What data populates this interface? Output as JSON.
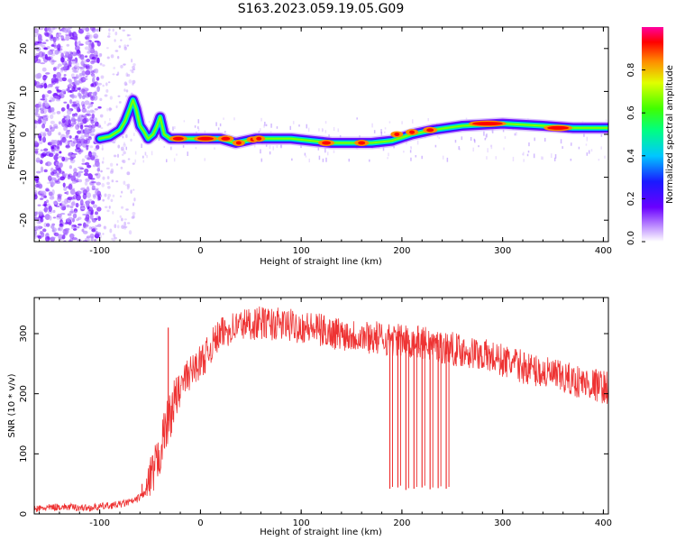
{
  "figure": {
    "title": "S163.2023.059.19.05.G09"
  },
  "colors": {
    "snr_line": "#ee3333",
    "axis": "#000000",
    "background": "#ffffff"
  },
  "chart_data": [
    {
      "type": "heatmap",
      "xlabel": "Height of straight line (km)",
      "ylabel": "Frequency (Hz)",
      "xlim": [
        -165,
        405
      ],
      "ylim": [
        -25,
        25
      ],
      "xticks": [
        -100,
        0,
        100,
        200,
        300,
        400
      ],
      "yticks": [
        -20,
        -10,
        0,
        10,
        20
      ],
      "xtick_labels": [
        "-100",
        "0",
        "100",
        "200",
        "300",
        "400"
      ],
      "ytick_labels": [
        "-20",
        "-10",
        "0",
        "10",
        "20"
      ],
      "grid": false,
      "colorbar": {
        "label": "Normalized spectral amplitude",
        "range": [
          0,
          1
        ],
        "ticks": [
          0.0,
          0.2,
          0.4,
          0.6,
          0.8
        ],
        "tick_labels": [
          "0.0",
          "0.2",
          "0.4",
          "0.6",
          "0.8"
        ],
        "colormap": "rainbow"
      },
      "ridge": {
        "x": [
          -100,
          -90,
          -80,
          -75,
          -70,
          -67,
          -64,
          -60,
          -57,
          -52,
          -47,
          -43,
          -40,
          -36,
          -30,
          -20,
          0,
          20,
          35,
          45,
          55,
          70,
          90,
          110,
          130,
          150,
          170,
          190,
          210,
          230,
          260,
          300,
          340,
          370,
          405
        ],
        "y": [
          -1,
          -0.5,
          1,
          3,
          6,
          8,
          6,
          2,
          1,
          -1,
          0,
          2,
          4,
          0,
          -1,
          -1,
          -1,
          -1,
          -2,
          -1.5,
          -1,
          -1,
          -1,
          -1.5,
          -2,
          -2,
          -2,
          -1.5,
          0,
          1,
          2,
          2.5,
          2,
          1.5,
          1.5
        ]
      }
    },
    {
      "type": "line",
      "xlabel": "Height of straight line (km)",
      "ylabel": "SNR (10 * v/v)",
      "xlim": [
        -165,
        405
      ],
      "ylim": [
        0,
        360
      ],
      "xticks": [
        -100,
        0,
        100,
        200,
        300,
        400
      ],
      "yticks": [
        0,
        100,
        200,
        300
      ],
      "xtick_labels": [
        "-100",
        "0",
        "100",
        "200",
        "300",
        "400"
      ],
      "ytick_labels": [
        "0",
        "100",
        "200",
        "300"
      ],
      "grid": false,
      "series": [
        {
          "x": [
            -165,
            -140,
            -110,
            -80,
            -65,
            -55,
            -48,
            -42,
            -35,
            -25,
            -15,
            -5,
            5,
            15,
            25,
            40,
            60,
            80,
            100,
            130,
            160,
            190,
            220,
            250,
            280,
            310,
            340,
            370,
            405
          ],
          "values": [
            8,
            12,
            10,
            16,
            22,
            35,
            60,
            90,
            140,
            190,
            225,
            245,
            262,
            290,
            305,
            315,
            318,
            315,
            312,
            302,
            296,
            290,
            285,
            275,
            265,
            250,
            235,
            222,
            210
          ]
        }
      ],
      "dropouts": [
        {
          "x": 188,
          "y": 42
        },
        {
          "x": 196,
          "y": 44
        },
        {
          "x": 204,
          "y": 40
        },
        {
          "x": 212,
          "y": 42
        },
        {
          "x": 220,
          "y": 44
        },
        {
          "x": 228,
          "y": 41
        },
        {
          "x": 236,
          "y": 43
        },
        {
          "x": 244,
          "y": 42
        }
      ],
      "spikes": [
        {
          "x": -32,
          "y": 310
        },
        {
          "x": -58,
          "y": 50
        }
      ]
    }
  ]
}
